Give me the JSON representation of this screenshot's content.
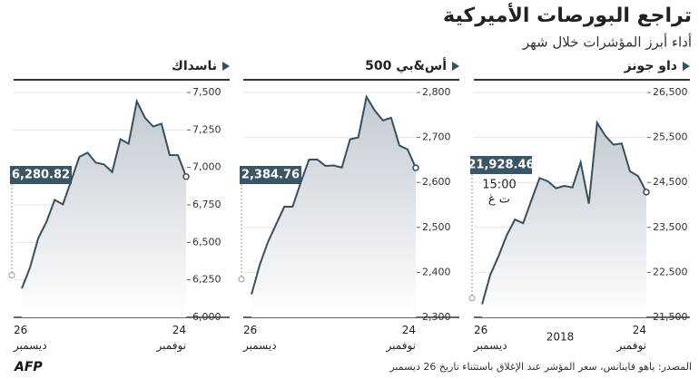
{
  "title": "تراجع البورصات الأميركية",
  "subtitle": "أداء أبرز المؤشرات خلال شهر",
  "source": "المصدر: ياهو فاينانس، سعر المؤشر عند الإغلاق باستثناء تاريخ 26 ديسمبر",
  "logo": "AFP",
  "chart_data": [
    {
      "type": "line",
      "title": "داو جونز",
      "color": "#36505f",
      "categories": [
        "26 ديسمبر",
        null,
        null,
        null,
        null,
        null,
        null,
        null,
        null,
        null,
        null,
        null,
        null,
        null,
        null,
        null,
        null,
        null,
        null,
        null,
        null,
        "24 نوفمبر"
      ],
      "values": [
        null,
        21792.2,
        22445.37,
        22859.6,
        23323.66,
        23675.64,
        23592.98,
        24100.51,
        24597.38,
        24527.27,
        24370.24,
        24423.26,
        24388.95,
        24947.67,
        24027.07,
        25826.43,
        25538.46,
        25338.84,
        25366.43,
        24748.73,
        24640.24,
        24285.95
      ],
      "callout": {
        "value": 21928.46,
        "label": "21,928.46"
      },
      "note": [
        "15:00",
        "ت غ"
      ],
      "year_label": "2018",
      "ylim": [
        21500,
        26500
      ],
      "yticks": [
        {
          "value": 21500,
          "label": "21,500"
        },
        {
          "value": 22500,
          "label": "22,500"
        },
        {
          "value": 23500,
          "label": "23,500"
        },
        {
          "value": 24500,
          "label": "24,500"
        },
        {
          "value": 25500,
          "label": "25,500"
        },
        {
          "value": 26500,
          "label": "26,500"
        }
      ],
      "grid": true
    },
    {
      "type": "line",
      "title": "أس&بي 500",
      "color": "#36505f",
      "categories": [
        "26 ديسمبر",
        null,
        null,
        null,
        null,
        null,
        null,
        null,
        null,
        null,
        null,
        null,
        null,
        null,
        null,
        null,
        null,
        null,
        null,
        null,
        null,
        "24 نوفمبر"
      ],
      "values": [
        null,
        2351.1,
        2416.62,
        2467.42,
        2506.96,
        2546.16,
        2545.94,
        2599.95,
        2650.54,
        2651.07,
        2636.78,
        2637.72,
        2633.08,
        2695.95,
        2700.06,
        2790.37,
        2760.17,
        2737.8,
        2743.79,
        2682.17,
        2673.45,
        2632.56
      ],
      "callout": {
        "value": 2384.76,
        "label": "2,384.76"
      },
      "ylim": [
        2300,
        2800
      ],
      "yticks": [
        {
          "value": 2300,
          "label": "2,300"
        },
        {
          "value": 2400,
          "label": "2,400"
        },
        {
          "value": 2500,
          "label": "2,500"
        },
        {
          "value": 2600,
          "label": "2,600"
        },
        {
          "value": 2700,
          "label": "2,700"
        },
        {
          "value": 2800,
          "label": "2,800"
        }
      ],
      "grid": true
    },
    {
      "type": "line",
      "title": "ناسداك",
      "color": "#36505f",
      "categories": [
        "26 ديسمبر",
        null,
        null,
        null,
        null,
        null,
        null,
        null,
        null,
        null,
        null,
        null,
        null,
        null,
        null,
        null,
        null,
        null,
        null,
        null,
        null,
        "24 نوفمبر"
      ],
      "values": [
        null,
        6192.92,
        6332.99,
        6528.41,
        6636.83,
        6783.91,
        6753.73,
        6910.67,
        7070.33,
        7098.31,
        7031.83,
        7020.52,
        6969.25,
        7188.26,
        7158.43,
        7441.51,
        7330.54,
        7273.08,
        7291.59,
        7082.7,
        7081.85,
        6938.98
      ],
      "callout": {
        "value": 6280.82,
        "label": "6,280.82"
      },
      "ylim": [
        6000,
        7500
      ],
      "yticks": [
        {
          "value": 6000,
          "label": "6,000"
        },
        {
          "value": 6250,
          "label": "6,250"
        },
        {
          "value": 6500,
          "label": "6,500"
        },
        {
          "value": 6750,
          "label": "6,750"
        },
        {
          "value": 7000,
          "label": "7,000"
        },
        {
          "value": 7250,
          "label": "7,250"
        },
        {
          "value": 7500,
          "label": "7,500"
        }
      ],
      "grid": true
    }
  ]
}
